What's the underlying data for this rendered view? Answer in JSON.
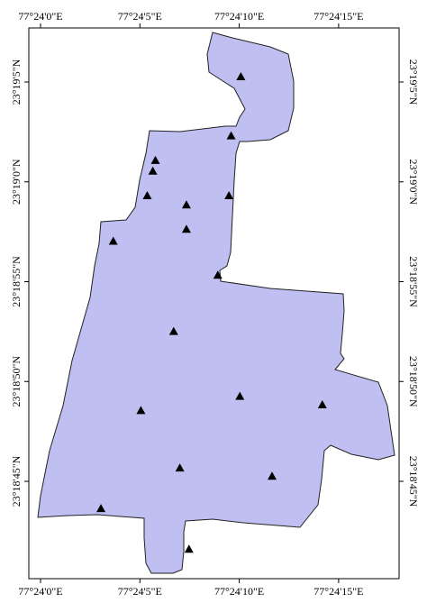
{
  "map": {
    "fill_color": "#bfbff2",
    "outline_color": "#222222",
    "marker_color": "#000000",
    "marker_shape": "triangle",
    "grid": false,
    "axes": {
      "top": [
        "77°24'0\"E",
        "77°24'5\"E",
        "77°24'10\"E",
        "77°24'15\"E"
      ],
      "bottom": [
        "77°24'0\"E",
        "77°24'5\"E",
        "77°24'10\"E",
        "77°24'15\"E"
      ],
      "left": [
        "23°19'5\"N",
        "23°19'0\"N",
        "23°18'55\"N",
        "23°18'50\"N",
        "23°18'45\"N"
      ],
      "right": [
        "23°19'5\"N",
        "23°19'0\"N",
        "23°18'55\"N",
        "23°18'50\"N",
        "23°18'45\"N"
      ]
    },
    "lon_ticks_sec": [
      0,
      5,
      10,
      15
    ],
    "lat_ticks_sec": [
      65,
      60,
      55,
      50,
      45
    ],
    "sample_points": [
      {
        "lon_sec": 10.08,
        "lat_sec": 65.27
      },
      {
        "lon_sec": 9.59,
        "lat_sec": 62.31
      },
      {
        "lon_sec": 5.78,
        "lat_sec": 61.08
      },
      {
        "lon_sec": 5.65,
        "lat_sec": 60.54
      },
      {
        "lon_sec": 5.37,
        "lat_sec": 59.31
      },
      {
        "lon_sec": 7.34,
        "lat_sec": 58.85
      },
      {
        "lon_sec": 9.48,
        "lat_sec": 59.31
      },
      {
        "lon_sec": 7.34,
        "lat_sec": 57.63
      },
      {
        "lon_sec": 3.66,
        "lat_sec": 57.03
      },
      {
        "lon_sec": 8.92,
        "lat_sec": 55.33
      },
      {
        "lon_sec": 6.7,
        "lat_sec": 52.51
      },
      {
        "lon_sec": 10.03,
        "lat_sec": 49.26
      },
      {
        "lon_sec": 14.18,
        "lat_sec": 48.84
      },
      {
        "lon_sec": 5.05,
        "lat_sec": 48.55
      },
      {
        "lon_sec": 7.01,
        "lat_sec": 45.67
      },
      {
        "lon_sec": 11.65,
        "lat_sec": 45.26
      },
      {
        "lon_sec": 3.04,
        "lat_sec": 43.64
      },
      {
        "lon_sec": 7.47,
        "lat_sec": 41.6
      }
    ]
  }
}
